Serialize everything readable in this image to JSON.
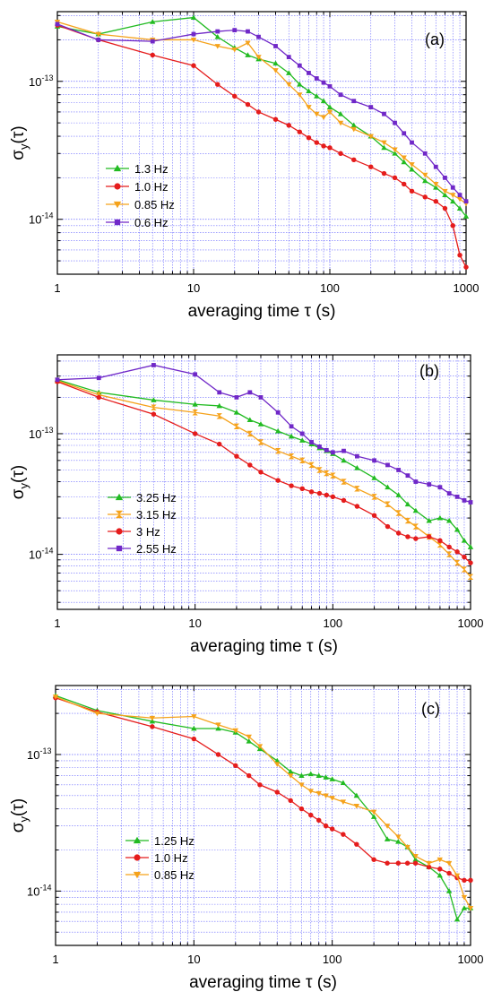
{
  "chart_data": [
    {
      "type": "line",
      "panel_label": "(a)",
      "xlabel": "averaging time τ (s)",
      "ylabel": "σ_y(τ)",
      "x_scale": "log",
      "y_scale": "log",
      "xlim": [
        1,
        1000
      ],
      "ylim": [
        4e-15,
        3.2e-13
      ],
      "grid": true,
      "legend_position": "center-left",
      "x_ticks": [
        {
          "value": 1,
          "label": "1"
        },
        {
          "value": 10,
          "label": "10"
        },
        {
          "value": 100,
          "label": "100"
        },
        {
          "value": 1000,
          "label": "1000"
        }
      ],
      "y_ticks": [
        {
          "value": 1e-13,
          "mantissa": "10",
          "exponent": "-13"
        },
        {
          "value": 1e-14,
          "mantissa": "10",
          "exponent": "-14"
        }
      ],
      "series": [
        {
          "name": "1.3 Hz",
          "color": "#22bb22",
          "marker": "triangle-up",
          "x": [
            1,
            2,
            5,
            10,
            15,
            20,
            25,
            30,
            40,
            50,
            60,
            70,
            80,
            90,
            100,
            120,
            150,
            200,
            250,
            300,
            350,
            400,
            500,
            600,
            700,
            800,
            900,
            1000
          ],
          "y": [
            2.5e-13,
            2.2e-13,
            2.7e-13,
            2.9e-13,
            2.1e-13,
            1.75e-13,
            1.55e-13,
            1.45e-13,
            1.35e-13,
            1.15e-13,
            9.5e-14,
            8.5e-14,
            7.8e-14,
            7.2e-14,
            6.5e-14,
            5.8e-14,
            4.8e-14,
            4e-14,
            3.3e-14,
            3e-14,
            2.6e-14,
            2.3e-14,
            1.9e-14,
            1.7e-14,
            1.5e-14,
            1.35e-14,
            1.2e-14,
            1.05e-14
          ]
        },
        {
          "name": "1.0 Hz",
          "color": "#e51c1c",
          "marker": "circle",
          "x": [
            1,
            2,
            5,
            10,
            15,
            20,
            25,
            30,
            40,
            50,
            60,
            70,
            80,
            90,
            100,
            120,
            150,
            200,
            250,
            300,
            350,
            400,
            500,
            600,
            700,
            800,
            900,
            1000
          ],
          "y": [
            2.55e-13,
            2e-13,
            1.55e-13,
            1.3e-13,
            9.5e-14,
            7.8e-14,
            6.8e-14,
            6e-14,
            5.3e-14,
            4.8e-14,
            4.3e-14,
            3.9e-14,
            3.6e-14,
            3.4e-14,
            3.3e-14,
            3e-14,
            2.7e-14,
            2.4e-14,
            2.15e-14,
            2e-14,
            1.8e-14,
            1.6e-14,
            1.45e-14,
            1.35e-14,
            1.2e-14,
            9e-15,
            5.5e-15,
            4.5e-15
          ]
        },
        {
          "name": "0.85 Hz",
          "color": "#f5a21b",
          "marker": "triangle-down",
          "x": [
            1,
            2,
            5,
            10,
            15,
            20,
            25,
            30,
            40,
            50,
            60,
            70,
            80,
            90,
            100,
            120,
            150,
            200,
            250,
            300,
            350,
            400,
            500,
            600,
            700,
            800,
            900,
            1000
          ],
          "y": [
            2.7e-13,
            2.2e-13,
            2e-13,
            2e-13,
            1.8e-13,
            1.7e-13,
            1.9e-13,
            1.5e-13,
            1.2e-13,
            9.5e-14,
            8e-14,
            6.5e-14,
            5.8e-14,
            5.5e-14,
            6e-14,
            5e-14,
            4.5e-14,
            4e-14,
            3.6e-14,
            3.2e-14,
            2.8e-14,
            2.5e-14,
            2.1e-14,
            1.8e-14,
            1.6e-14,
            1.5e-14,
            1.4e-14,
            1.3e-14
          ]
        },
        {
          "name": "0.6 Hz",
          "color": "#7028c8",
          "marker": "square",
          "x": [
            1,
            2,
            5,
            10,
            15,
            20,
            25,
            30,
            40,
            50,
            60,
            70,
            80,
            90,
            100,
            120,
            150,
            200,
            250,
            300,
            350,
            400,
            500,
            600,
            700,
            800,
            900,
            1000
          ],
          "y": [
            2.6e-13,
            2e-13,
            1.95e-13,
            2.2e-13,
            2.3e-13,
            2.35e-13,
            2.3e-13,
            2.1e-13,
            1.8e-13,
            1.5e-13,
            1.3e-13,
            1.15e-13,
            1.05e-13,
            9.8e-14,
            9.2e-14,
            8e-14,
            7.2e-14,
            6.5e-14,
            5.8e-14,
            5e-14,
            4.2e-14,
            3.6e-14,
            3e-14,
            2.4e-14,
            2e-14,
            1.7e-14,
            1.5e-14,
            1.35e-14
          ]
        }
      ]
    },
    {
      "type": "line",
      "panel_label": "(b)",
      "xlabel": "averaging time τ (s)",
      "ylabel": "σ_y(τ)",
      "x_scale": "log",
      "y_scale": "log",
      "xlim": [
        1,
        1000
      ],
      "ylim": [
        3.5e-15,
        4.5e-13
      ],
      "grid": true,
      "legend_position": "center-left",
      "x_ticks": [
        {
          "value": 1,
          "label": "1"
        },
        {
          "value": 10,
          "label": "10"
        },
        {
          "value": 100,
          "label": "100"
        },
        {
          "value": 1000,
          "label": "1000"
        }
      ],
      "y_ticks": [
        {
          "value": 1e-13,
          "mantissa": "10",
          "exponent": "-13"
        },
        {
          "value": 1e-14,
          "mantissa": "10",
          "exponent": "-14"
        }
      ],
      "series": [
        {
          "name": "3.25 Hz",
          "color": "#22bb22",
          "marker": "triangle-up",
          "x": [
            1,
            2,
            5,
            10,
            15,
            20,
            25,
            30,
            40,
            50,
            60,
            70,
            80,
            90,
            100,
            120,
            150,
            200,
            250,
            300,
            350,
            400,
            500,
            600,
            700,
            800,
            900,
            1000
          ],
          "y": [
            2.8e-13,
            2.2e-13,
            1.9e-13,
            1.75e-13,
            1.7e-13,
            1.5e-13,
            1.3e-13,
            1.2e-13,
            1.05e-13,
            9.5e-14,
            8.8e-14,
            8.2e-14,
            7.6e-14,
            7.2e-14,
            6.8e-14,
            6e-14,
            5.2e-14,
            4.3e-14,
            3.6e-14,
            3.1e-14,
            2.6e-14,
            2.3e-14,
            1.9e-14,
            2e-14,
            1.9e-14,
            1.6e-14,
            1.3e-14,
            1.15e-14
          ]
        },
        {
          "name": "3.15 Hz",
          "color": "#f5a21b",
          "marker": "hourglass",
          "x": [
            1,
            2,
            5,
            10,
            15,
            20,
            25,
            30,
            40,
            50,
            60,
            70,
            80,
            90,
            100,
            120,
            150,
            200,
            250,
            300,
            350,
            400,
            500,
            600,
            700,
            800,
            900,
            1000
          ],
          "y": [
            2.75e-13,
            2.1e-13,
            1.65e-13,
            1.5e-13,
            1.4e-13,
            1.15e-13,
            1e-13,
            8.5e-14,
            7.2e-14,
            6.5e-14,
            6e-14,
            5.5e-14,
            5e-14,
            4.7e-14,
            4.5e-14,
            4e-14,
            3.5e-14,
            3e-14,
            2.6e-14,
            2.2e-14,
            1.9e-14,
            1.7e-14,
            1.4e-14,
            1.2e-14,
            1e-14,
            8.5e-15,
            7.5e-15,
            6.5e-15
          ]
        },
        {
          "name": "3 Hz",
          "color": "#e51c1c",
          "marker": "circle",
          "x": [
            1,
            2,
            5,
            10,
            15,
            20,
            25,
            30,
            40,
            50,
            60,
            70,
            80,
            90,
            100,
            120,
            150,
            200,
            250,
            300,
            350,
            400,
            500,
            600,
            700,
            800,
            900,
            1000
          ],
          "y": [
            2.7e-13,
            2e-13,
            1.45e-13,
            1e-13,
            8.2e-14,
            6.5e-14,
            5.5e-14,
            4.8e-14,
            4.1e-14,
            3.7e-14,
            3.5e-14,
            3.3e-14,
            3.2e-14,
            3.1e-14,
            3e-14,
            2.8e-14,
            2.5e-14,
            2.1e-14,
            1.7e-14,
            1.5e-14,
            1.4e-14,
            1.35e-14,
            1.4e-14,
            1.3e-14,
            1.15e-14,
            1.05e-14,
            9.5e-15,
            8.5e-15
          ]
        },
        {
          "name": "2.55 Hz",
          "color": "#7028c8",
          "marker": "square",
          "x": [
            1,
            2,
            5,
            10,
            15,
            20,
            25,
            30,
            40,
            50,
            60,
            70,
            80,
            90,
            100,
            120,
            150,
            200,
            250,
            300,
            350,
            400,
            500,
            600,
            700,
            800,
            900,
            1000
          ],
          "y": [
            2.8e-13,
            2.9e-13,
            3.7e-13,
            3.1e-13,
            2.2e-13,
            2e-13,
            2.2e-13,
            2e-13,
            1.5e-13,
            1.15e-13,
            1e-13,
            8.5e-14,
            7.8e-14,
            7.3e-14,
            7e-14,
            7.2e-14,
            6.5e-14,
            6e-14,
            5.5e-14,
            5e-14,
            4.5e-14,
            4e-14,
            3.8e-14,
            3.6e-14,
            3.2e-14,
            3e-14,
            2.8e-14,
            2.7e-14
          ]
        }
      ]
    },
    {
      "type": "line",
      "panel_label": "(c)",
      "xlabel": "averaging time τ (s)",
      "ylabel": "σ_y(τ)",
      "x_scale": "log",
      "y_scale": "log",
      "xlim": [
        1,
        1000
      ],
      "ylim": [
        4e-15,
        3.2e-13
      ],
      "grid": true,
      "legend_position": "center-left",
      "x_ticks": [
        {
          "value": 1,
          "label": "1"
        },
        {
          "value": 10,
          "label": "10"
        },
        {
          "value": 100,
          "label": "100"
        },
        {
          "value": 1000,
          "label": "1000"
        }
      ],
      "y_ticks": [
        {
          "value": 1e-13,
          "mantissa": "10",
          "exponent": "-13"
        },
        {
          "value": 1e-14,
          "mantissa": "10",
          "exponent": "-14"
        }
      ],
      "series": [
        {
          "name": "1.25 Hz",
          "color": "#22bb22",
          "marker": "triangle-up",
          "x": [
            1,
            2,
            5,
            10,
            15,
            20,
            25,
            30,
            40,
            50,
            60,
            70,
            80,
            90,
            100,
            120,
            150,
            200,
            250,
            300,
            350,
            400,
            500,
            600,
            700,
            800,
            900,
            1000
          ],
          "y": [
            2.7e-13,
            2.1e-13,
            1.75e-13,
            1.55e-13,
            1.55e-13,
            1.45e-13,
            1.25e-13,
            1.1e-13,
            9e-14,
            7.5e-14,
            7e-14,
            7.2e-14,
            7e-14,
            6.8e-14,
            6.6e-14,
            6.2e-14,
            5e-14,
            3.5e-14,
            2.4e-14,
            2.3e-14,
            2.1e-14,
            1.7e-14,
            1.5e-14,
            1.3e-14,
            1e-14,
            6.2e-15,
            7.5e-15,
            7.5e-15
          ]
        },
        {
          "name": "1.0 Hz",
          "color": "#e51c1c",
          "marker": "circle",
          "x": [
            1,
            2,
            5,
            10,
            15,
            20,
            25,
            30,
            40,
            50,
            60,
            70,
            80,
            90,
            100,
            120,
            150,
            200,
            250,
            300,
            350,
            400,
            500,
            600,
            700,
            800,
            900,
            1000
          ],
          "y": [
            2.6e-13,
            2.05e-13,
            1.6e-13,
            1.3e-13,
            1e-13,
            8.3e-14,
            7e-14,
            6e-14,
            5.3e-14,
            4.6e-14,
            4e-14,
            3.6e-14,
            3.3e-14,
            3e-14,
            2.85e-14,
            2.6e-14,
            2.2e-14,
            1.7e-14,
            1.6e-14,
            1.6e-14,
            1.6e-14,
            1.6e-14,
            1.5e-14,
            1.45e-14,
            1.35e-14,
            1.25e-14,
            1.2e-14,
            1.2e-14
          ]
        },
        {
          "name": "0.85 Hz",
          "color": "#f5a21b",
          "marker": "triangle-down",
          "x": [
            1,
            2,
            5,
            10,
            15,
            20,
            25,
            30,
            40,
            50,
            60,
            70,
            80,
            90,
            100,
            120,
            150,
            200,
            250,
            300,
            350,
            400,
            500,
            600,
            700,
            800,
            900,
            1000
          ],
          "y": [
            2.65e-13,
            2e-13,
            1.85e-13,
            1.9e-13,
            1.65e-13,
            1.5e-13,
            1.35e-13,
            1.15e-13,
            8.5e-14,
            7e-14,
            6e-14,
            5.4e-14,
            5.2e-14,
            5e-14,
            4.8e-14,
            4.5e-14,
            4.2e-14,
            3.8e-14,
            3e-14,
            2.5e-14,
            2.1e-14,
            1.8e-14,
            1.6e-14,
            1.7e-14,
            1.6e-14,
            1.3e-14,
            9e-15,
            7.5e-15
          ]
        }
      ]
    }
  ]
}
